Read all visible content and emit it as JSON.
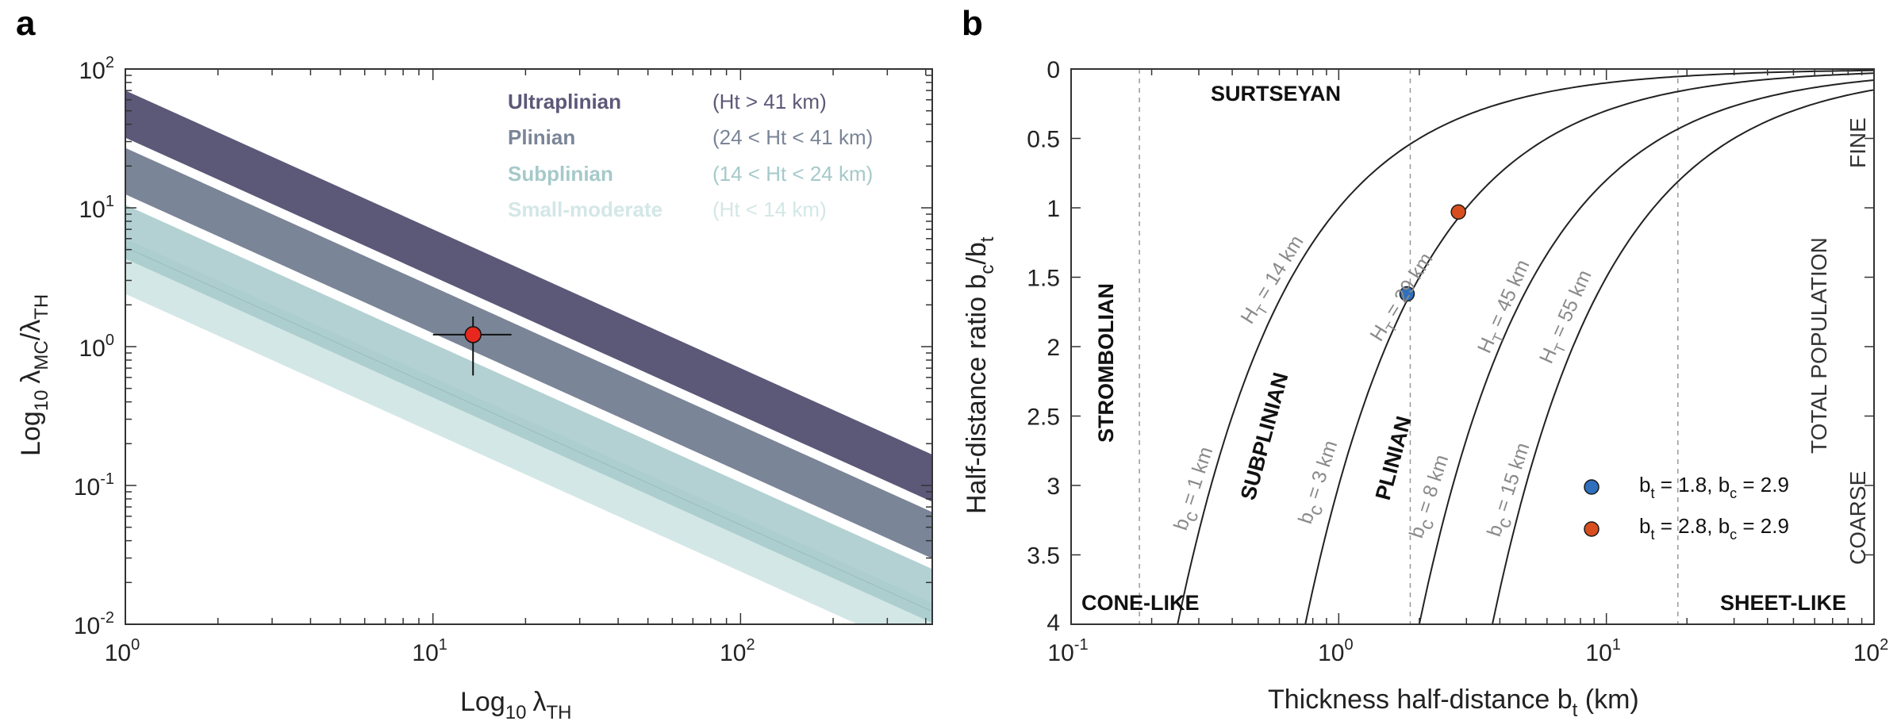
{
  "chart_data": [
    {
      "panel": "a",
      "type": "area",
      "xlabel": "Log",
      "xlabel_sub": "10",
      "xlabel_lambda": "λ",
      "xlabel_lambda_sub": "TH",
      "ylabel": "Log",
      "ylabel_sub": "10",
      "ylabel_lambda1": "λ",
      "ylabel_lambda1_sub": "MC",
      "ylabel_slash": "/",
      "ylabel_lambda2": "λ",
      "ylabel_lambda2_sub": "TH",
      "xscale": "log",
      "yscale": "log",
      "xlim": [
        1,
        420
      ],
      "ylim": [
        0.01,
        100
      ],
      "xticks": [
        {
          "value": 1,
          "base": "10",
          "exp": "0"
        },
        {
          "value": 10,
          "base": "10",
          "exp": "1"
        },
        {
          "value": 100,
          "base": "10",
          "exp": "2"
        }
      ],
      "yticks": [
        {
          "value": 0.01,
          "base": "10",
          "exp": "-2"
        },
        {
          "value": 0.1,
          "base": "10",
          "exp": "-1"
        },
        {
          "value": 1,
          "base": "10",
          "exp": "0"
        },
        {
          "value": 10,
          "base": "10",
          "exp": "1"
        },
        {
          "value": 100,
          "base": "10",
          "exp": "2"
        }
      ],
      "bands": [
        {
          "name": "Ultraplinian",
          "range": "(Ht > 41 km)",
          "color": "#5c5878",
          "upper": 70,
          "lower": 32
        },
        {
          "name": "Plinian",
          "range": "(24 < Ht < 41 km)",
          "color": "#7a8597",
          "upper": 27,
          "lower": 12.5
        },
        {
          "name": "Subplinian",
          "range": "(14 < Ht < 24 km)",
          "color": "#a6c9ca",
          "upper": 10.5,
          "lower": 4.3
        },
        {
          "name": "Small-moderate",
          "range": "(Ht < 14 km)",
          "color": "#d3e7e6",
          "upper": 6,
          "lower": 2.4
        }
      ],
      "band_slope": -1,
      "point": {
        "x": 13.5,
        "y": 1.22,
        "xerr": [
          10,
          18
        ],
        "yerr": [
          0.62,
          1.65
        ],
        "color": "#e8281f"
      }
    },
    {
      "panel": "b",
      "type": "line",
      "xlabel": "Thickness half-distance b",
      "xlabel_sub": "t",
      "xlabel_unit": " (km)",
      "ylabel": "Half-distance ratio b",
      "ylabel_sub1": "c",
      "ylabel_slash": "/b",
      "ylabel_sub2": "t",
      "xscale": "log",
      "xlim": [
        0.1,
        100
      ],
      "ylim": [
        0,
        4
      ],
      "y_inverted": true,
      "xticks": [
        {
          "value": 0.1,
          "base": "10",
          "exp": "-1"
        },
        {
          "value": 1,
          "base": "10",
          "exp": "0"
        },
        {
          "value": 10,
          "base": "10",
          "exp": "1"
        },
        {
          "value": 100,
          "base": "10",
          "exp": "2"
        }
      ],
      "yticks": [
        {
          "value": 0,
          "label": "0"
        },
        {
          "value": 0.5,
          "label": "0.5"
        },
        {
          "value": 1,
          "label": "1"
        },
        {
          "value": 1.5,
          "label": "1.5"
        },
        {
          "value": 2,
          "label": "2"
        },
        {
          "value": 2.5,
          "label": "2.5"
        },
        {
          "value": 3,
          "label": "3"
        },
        {
          "value": 3.5,
          "label": "3.5"
        }
      ],
      "curves": [
        {
          "bc": 1,
          "label_bc": "b",
          "label_bc_sub": "c",
          "label_bc_val": " = 1 km"
        },
        {
          "bc": 3,
          "label_bc": "b",
          "label_bc_sub": "c",
          "label_bc_val": " = 3 km"
        },
        {
          "bc": 8,
          "label_bc": "b",
          "label_bc_sub": "c",
          "label_bc_val": " = 8 km"
        },
        {
          "bc": 15,
          "label_bc": "b",
          "label_bc_sub": "c",
          "label_bc_val": " = 15 km"
        }
      ],
      "ht_labels": [
        {
          "text": "H",
          "sub": "T",
          "val": " = 14 km"
        },
        {
          "text": "H",
          "sub": "T",
          "val": " = 29 km"
        },
        {
          "text": "H",
          "sub": "T",
          "val": " = 45 km"
        },
        {
          "text": "H",
          "sub": "T",
          "val": " = 55 km"
        }
      ],
      "dashed_x": [
        0.18,
        1.85,
        18.5
      ],
      "regimes": [
        "SURTSEYAN",
        "STROMBOLIAN",
        "SUBPLINIAN",
        "PLINIAN",
        "CONE-LIKE",
        "SHEET-LIKE"
      ],
      "side_labels": {
        "fine": "FINE",
        "total": "TOTAL POPULATION",
        "coarse": "COARSE"
      },
      "points": [
        {
          "bt": 1.8,
          "bc": 2.9,
          "label": "b",
          "sub1": "t",
          "mid": " = 1.8, b",
          "sub2": "c",
          "end": " = 2.9",
          "x": 1.8,
          "y": 1.62,
          "color": "#2f6fbd"
        },
        {
          "bt": 2.8,
          "bc": 2.9,
          "label": "b",
          "sub1": "t",
          "mid": " = 2.8, b",
          "sub2": "c",
          "end": " = 2.9",
          "x": 2.8,
          "y": 1.03,
          "color": "#d94e1f"
        }
      ]
    }
  ],
  "panel_labels": {
    "a": "a",
    "b": "b"
  }
}
